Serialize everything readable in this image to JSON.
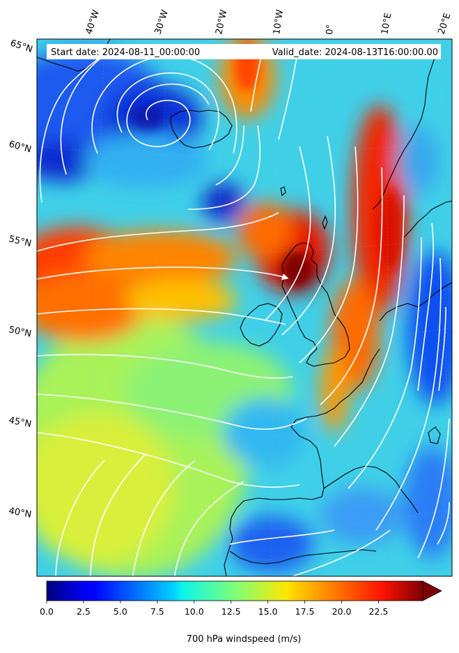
{
  "header": {
    "start_date_text": "Start date: 2024-08-11_00:00:00",
    "valid_date_text": "Valid_date: 2024-08-13T16:00:00.00"
  },
  "map": {
    "lon_labels": [
      "40°W",
      "30°W",
      "20°W",
      "10°W",
      "0°",
      "10°E",
      "20°E"
    ],
    "lat_labels": [
      "65°N",
      "60°N",
      "55°N",
      "50°N",
      "45°N",
      "40°N"
    ],
    "coastline_color": "#000000",
    "streamline_color": "#ffffff"
  },
  "colorbar": {
    "ticks": [
      "0.0",
      "2.5",
      "5.0",
      "7.5",
      "10.0",
      "12.5",
      "15.0",
      "17.5",
      "20.0",
      "22.5"
    ],
    "tick_values": [
      0,
      2.5,
      5,
      7.5,
      10,
      12.5,
      15,
      17.5,
      20,
      22.5
    ],
    "vmin": 0,
    "vmax": 25.5,
    "extend": "max",
    "label": "700 hPa windspeed (m/s)",
    "colormap": "jet"
  }
}
